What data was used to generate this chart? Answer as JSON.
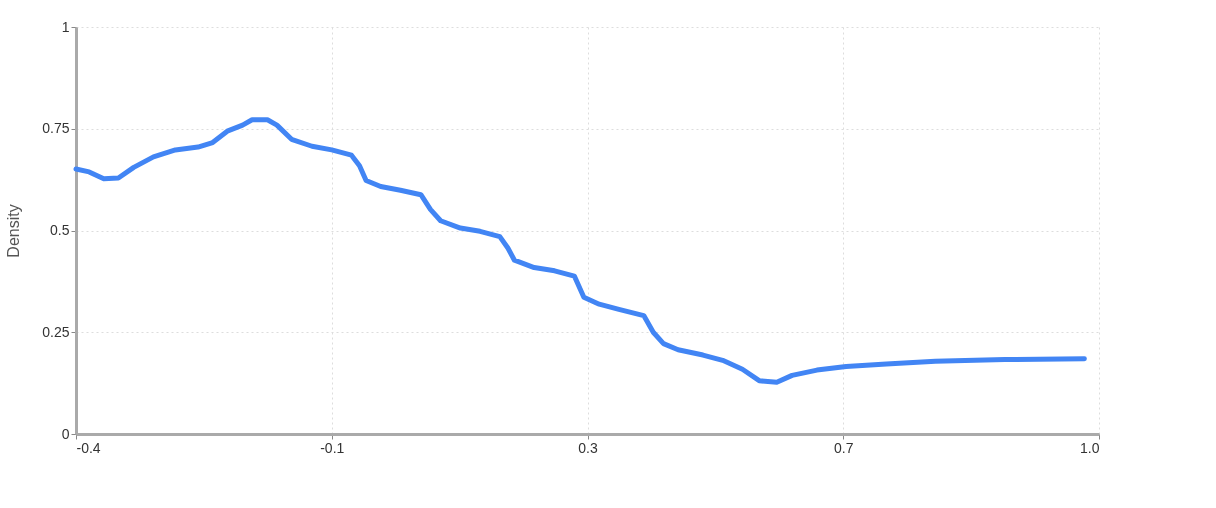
{
  "chart_data": {
    "type": "line",
    "ylabel": "Density",
    "xlim": [
      -0.4,
      1.0
    ],
    "xticks": [
      -0.4,
      {
        "value": -0.05,
        "label": "-0.1"
      },
      0.3,
      {
        "value": 0.65,
        "label": "0.7"
      },
      {
        "value": 1.0,
        "label": "1.0"
      }
    ],
    "ylim": [
      0,
      1
    ],
    "yticks": [
      0,
      0.25,
      0.5,
      0.75,
      1
    ],
    "grid": true,
    "marker": "none",
    "line_style": "solid",
    "series": [
      {
        "color": "#4285f4",
        "x": [
          -0.4,
          -0.382,
          -0.362,
          -0.342,
          -0.321,
          -0.294,
          -0.264,
          -0.233,
          -0.213,
          -0.193,
          -0.172,
          -0.159,
          -0.138,
          -0.125,
          -0.105,
          -0.077,
          -0.05,
          -0.023,
          -0.012,
          -0.003,
          0.017,
          0.044,
          0.072,
          0.085,
          0.099,
          0.126,
          0.153,
          0.18,
          0.191,
          0.2,
          0.227,
          0.255,
          0.282,
          0.295,
          0.316,
          0.343,
          0.377,
          0.39,
          0.404,
          0.424,
          0.458,
          0.485,
          0.512,
          0.535,
          0.559,
          0.58,
          0.614,
          0.654,
          0.709,
          0.776,
          0.871,
          0.98
        ],
        "values": [
          0.651,
          0.644,
          0.627,
          0.629,
          0.655,
          0.681,
          0.698,
          0.705,
          0.716,
          0.744,
          0.759,
          0.772,
          0.772,
          0.759,
          0.724,
          0.707,
          0.698,
          0.685,
          0.659,
          0.623,
          0.608,
          0.599,
          0.588,
          0.552,
          0.524,
          0.506,
          0.498,
          0.485,
          0.457,
          0.427,
          0.409,
          0.401,
          0.388,
          0.336,
          0.319,
          0.306,
          0.291,
          0.25,
          0.222,
          0.207,
          0.194,
          0.181,
          0.159,
          0.131,
          0.127,
          0.144,
          0.157,
          0.166,
          0.172,
          0.179,
          0.183,
          0.185
        ]
      }
    ]
  }
}
